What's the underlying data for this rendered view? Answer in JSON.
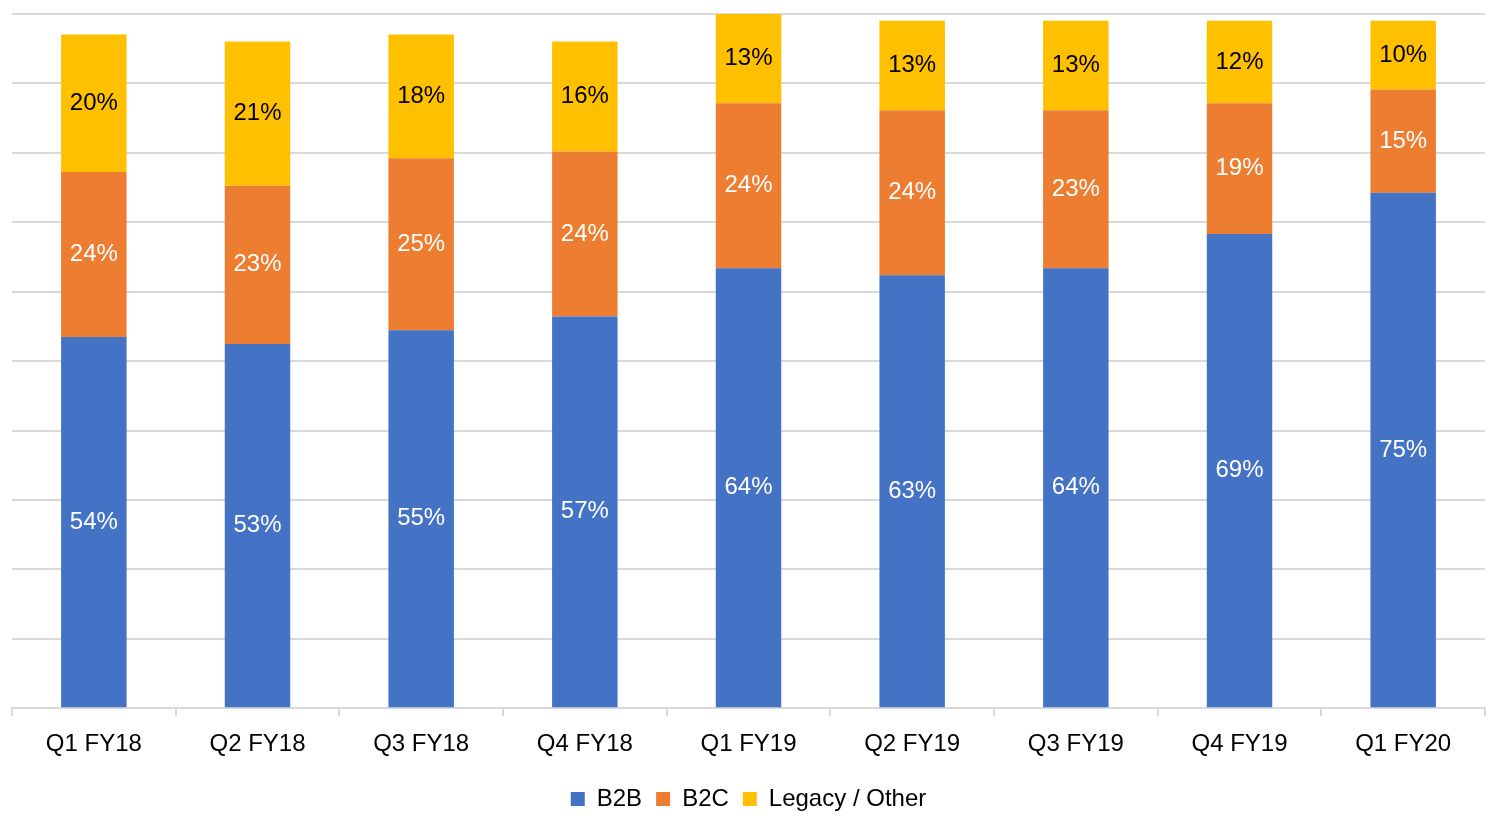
{
  "chart_data": {
    "type": "bar",
    "stacked": true,
    "categories": [
      "Q1 FY18",
      "Q2 FY18",
      "Q3 FY18",
      "Q4 FY18",
      "Q1 FY19",
      "Q2 FY19",
      "Q3 FY19",
      "Q4 FY19",
      "Q1 FY20"
    ],
    "series": [
      {
        "name": "B2B",
        "color": "#4472c4",
        "values": [
          54,
          53,
          55,
          57,
          64,
          63,
          64,
          69,
          75
        ],
        "value_labels": [
          "54%",
          "53%",
          "55%",
          "57%",
          "64%",
          "63%",
          "64%",
          "69%",
          "75%"
        ]
      },
      {
        "name": "B2C",
        "color": "#ed7d31",
        "values": [
          24,
          23,
          25,
          24,
          24,
          24,
          23,
          19,
          15
        ],
        "value_labels": [
          "24%",
          "23%",
          "25%",
          "24%",
          "24%",
          "24%",
          "23%",
          "19%",
          "15%"
        ]
      },
      {
        "name": "Legacy / Other",
        "color": "#ffc000",
        "values": [
          20,
          21,
          18,
          16,
          13,
          13,
          13,
          12,
          10
        ],
        "value_labels": [
          "20%",
          "21%",
          "18%",
          "16%",
          "13%",
          "13%",
          "13%",
          "12%",
          "10%"
        ]
      }
    ],
    "tick_labels": "x",
    "grid": "y",
    "legend": "bottom"
  }
}
